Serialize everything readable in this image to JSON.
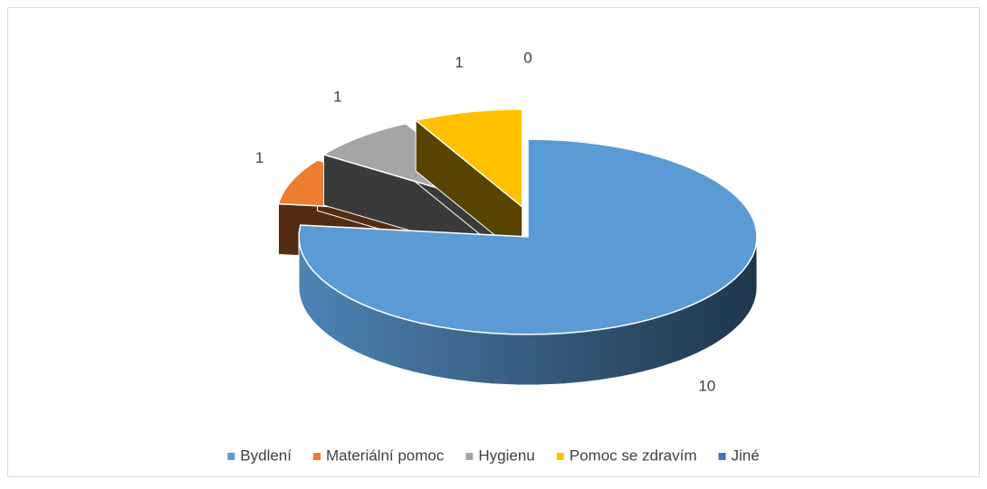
{
  "chart_data": {
    "type": "pie3d",
    "categories": [
      "Bydlení",
      "Materiální pomoc",
      "Hygienu",
      "Pomoc se zdravím",
      "Jiné"
    ],
    "values": [
      10,
      1,
      1,
      1,
      0
    ],
    "colors": [
      "#5b9bd5",
      "#ed7d31",
      "#a5a5a5",
      "#ffc000",
      "#4472c4"
    ],
    "legend": "bottom"
  }
}
